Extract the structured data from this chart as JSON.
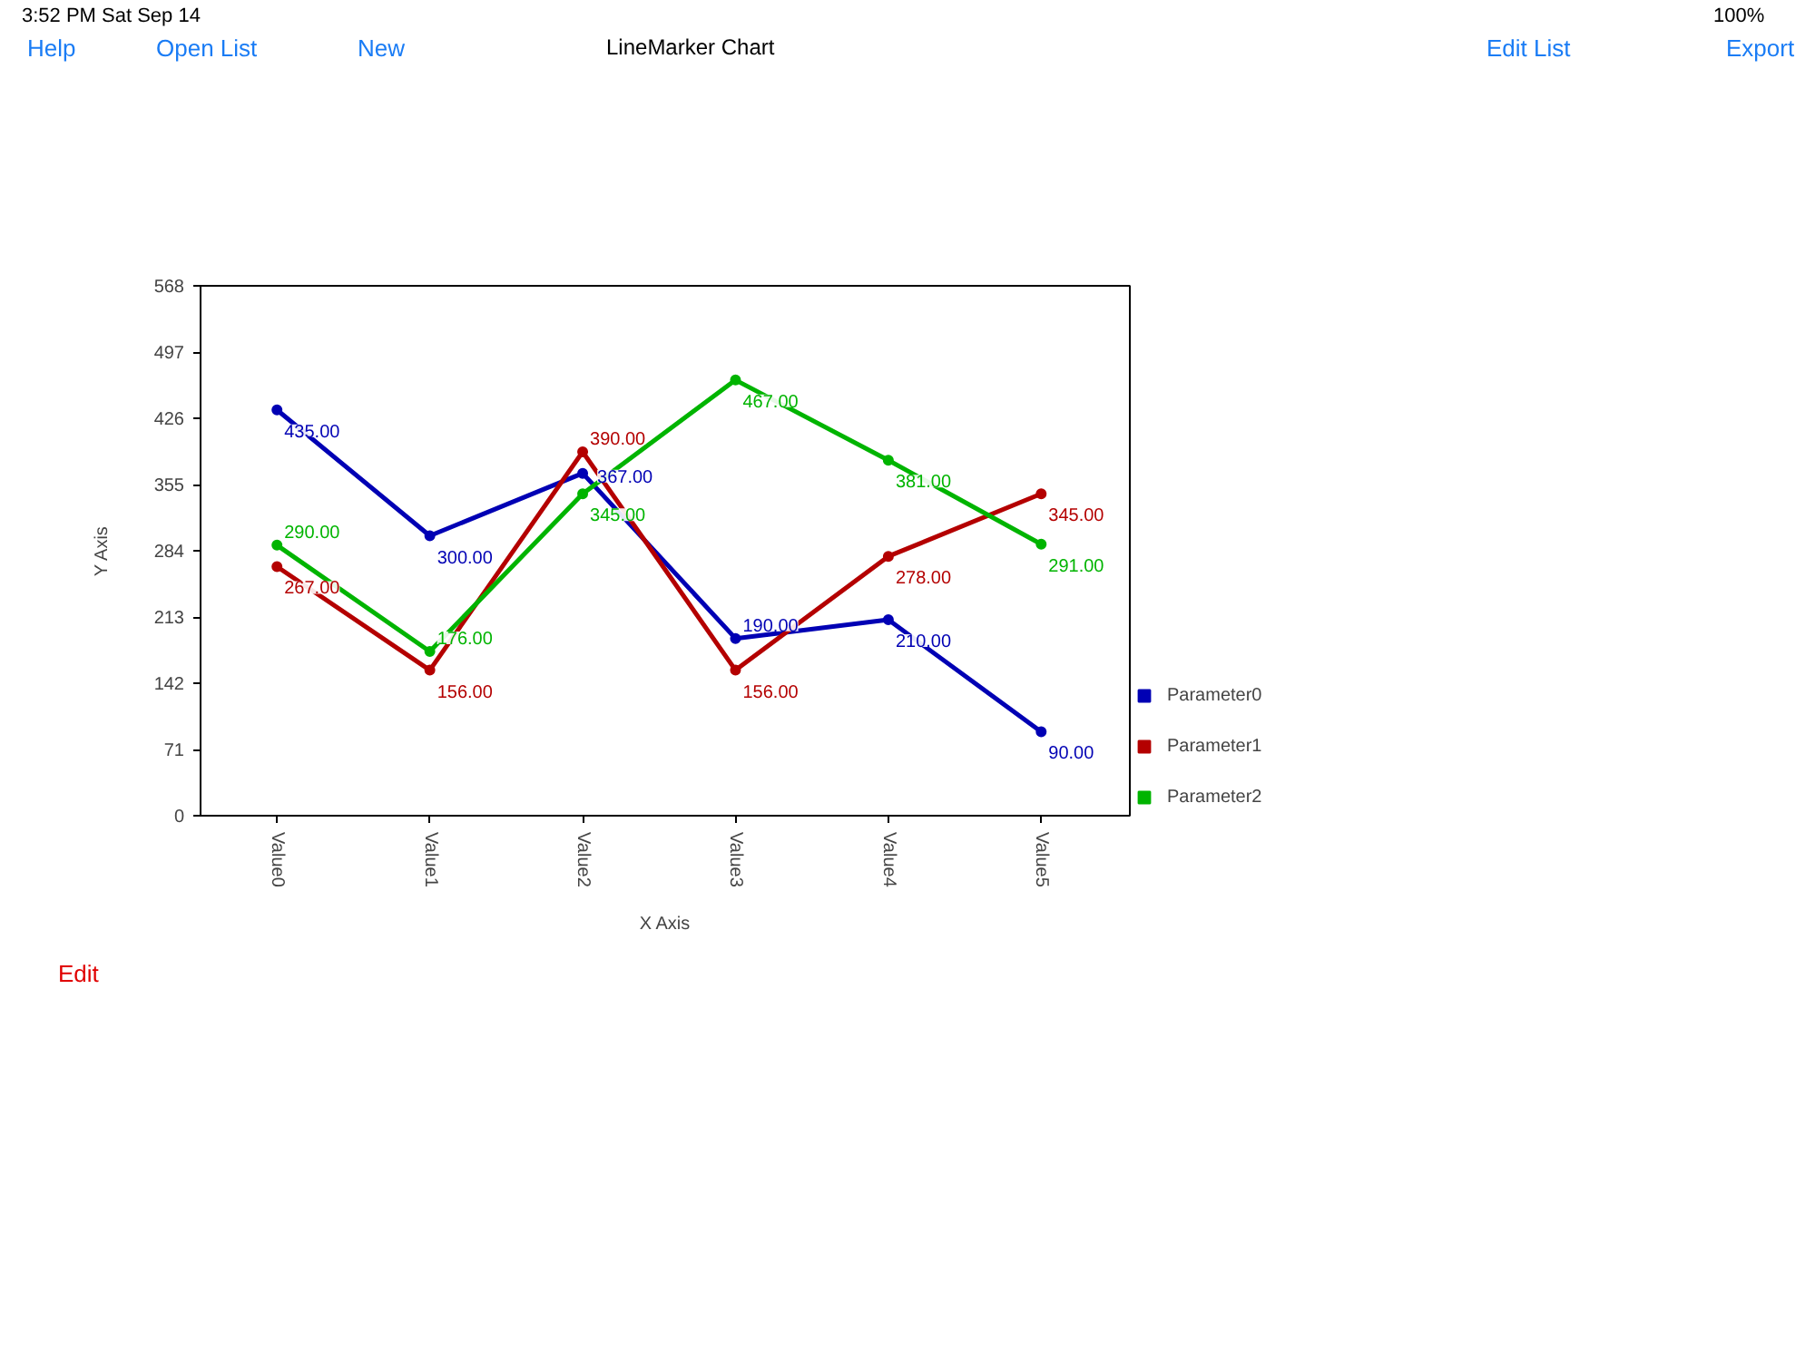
{
  "chart_data": {
    "type": "line",
    "title": "LineMarker Chart",
    "xlabel": "X Axis",
    "ylabel": "Y Axis",
    "categories": [
      "Value0",
      "Value1",
      "Value2",
      "Value3",
      "Value4",
      "Value5"
    ],
    "series": [
      {
        "name": "Parameter0",
        "color": "#0000b4",
        "values": [
          435,
          300,
          367,
          190,
          210,
          90
        ],
        "value_labels": [
          "435.00",
          "300.00",
          "367.00",
          "190.00",
          "210.00",
          "90.00"
        ]
      },
      {
        "name": "Parameter1",
        "color": "#b40000",
        "values": [
          267,
          156,
          390,
          156,
          278,
          345
        ],
        "value_labels": [
          "267.00",
          "156.00",
          "390.00",
          "156.00",
          "278.00",
          "345.00"
        ]
      },
      {
        "name": "Parameter2",
        "color": "#00b400",
        "values": [
          290,
          176,
          345,
          467,
          381,
          291
        ],
        "value_labels": [
          "290.00",
          "176.00",
          "345.00",
          "467.00",
          "381.00",
          "291.00"
        ]
      }
    ],
    "ylim": [
      0,
      568
    ],
    "yticks": [
      0,
      71,
      142,
      213,
      284,
      355,
      426,
      497,
      568
    ],
    "grid": false,
    "legend": "right",
    "marker": "circle",
    "line_style": "solid",
    "annotations": [
      "3:52 PM",
      "Sat Sep 14",
      "100%",
      "Help",
      "Open List",
      "New",
      "Edit List",
      "Export",
      "Edit"
    ]
  }
}
